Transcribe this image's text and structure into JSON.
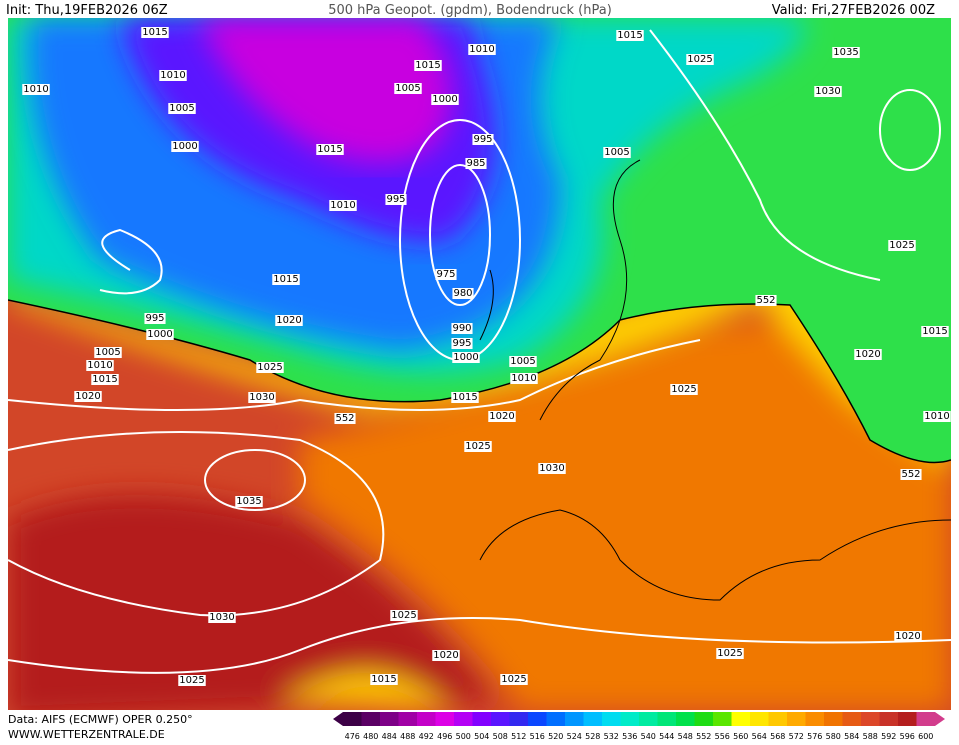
{
  "header": {
    "init": "Init: Thu,19FEB2026 06Z",
    "title": "500 hPa Geopot. (gpdm), Bodendruck (hPa)",
    "valid": "Valid: Fri,27FEB2026 00Z"
  },
  "map": {
    "isobar_labels": [
      1015,
      1010,
      1010,
      1005,
      1000,
      1015,
      1010,
      1015,
      1025,
      1035,
      1030,
      1005,
      1000,
      995,
      985,
      1015,
      1010,
      995,
      975,
      980,
      1005,
      1025,
      1015,
      1020,
      990,
      995,
      1000,
      1005,
      1010,
      995,
      1000,
      1005,
      1010,
      1015,
      1020,
      1025,
      1030,
      1015,
      1020,
      1025,
      1030,
      1025,
      1020,
      1015,
      1010,
      1035,
      1030,
      1025,
      1020,
      1025,
      1015,
      1025,
      1025,
      1020
    ],
    "geopotential_labels": [
      552,
      552,
      552
    ]
  },
  "colorbar": {
    "labels": [
      476,
      480,
      484,
      488,
      492,
      496,
      500,
      504,
      508,
      512,
      516,
      520,
      524,
      528,
      532,
      536,
      540,
      544,
      548,
      552,
      556,
      560,
      564,
      568,
      572,
      576,
      580,
      584,
      588,
      592,
      596,
      600
    ],
    "colors": [
      "#3c0046",
      "#5a0064",
      "#7d0087",
      "#a000a5",
      "#c300c8",
      "#dc00e6",
      "#b400f5",
      "#8200ff",
      "#5a14ff",
      "#3228f0",
      "#0a46ff",
      "#006eff",
      "#0096ff",
      "#00beff",
      "#00dcf0",
      "#00ebc8",
      "#00eba0",
      "#00e678",
      "#00e14b",
      "#1edc14",
      "#5ae600",
      "#ffff00",
      "#ffe600",
      "#ffc800",
      "#ffaa00",
      "#fa8c00",
      "#f07300",
      "#e65a14",
      "#dc4628",
      "#c83228",
      "#b41e1e",
      "#d23c8c"
    ]
  },
  "footer": {
    "source": "Data: AIFS (ECMWF) OPER 0.250°",
    "site": "WWW.WETTERZENTRALE.DE"
  }
}
